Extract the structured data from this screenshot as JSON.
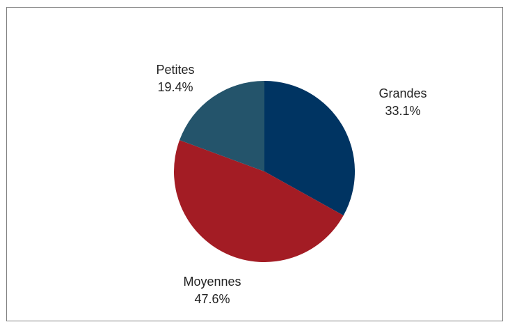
{
  "chart_data": {
    "type": "pie",
    "title": "",
    "slices": [
      {
        "label": "Grandes",
        "value": 33.1,
        "value_label": "33.1%",
        "color": "#003462"
      },
      {
        "label": "Moyennes",
        "value": 47.6,
        "value_label": "47.6%",
        "color": "#A31C24"
      },
      {
        "label": "Petites",
        "value": 19.4,
        "value_label": "19.4%",
        "color": "#24546B"
      }
    ],
    "start_angle": "12 o'clock",
    "direction": "clockwise",
    "legend": "none",
    "labels": "outside"
  }
}
